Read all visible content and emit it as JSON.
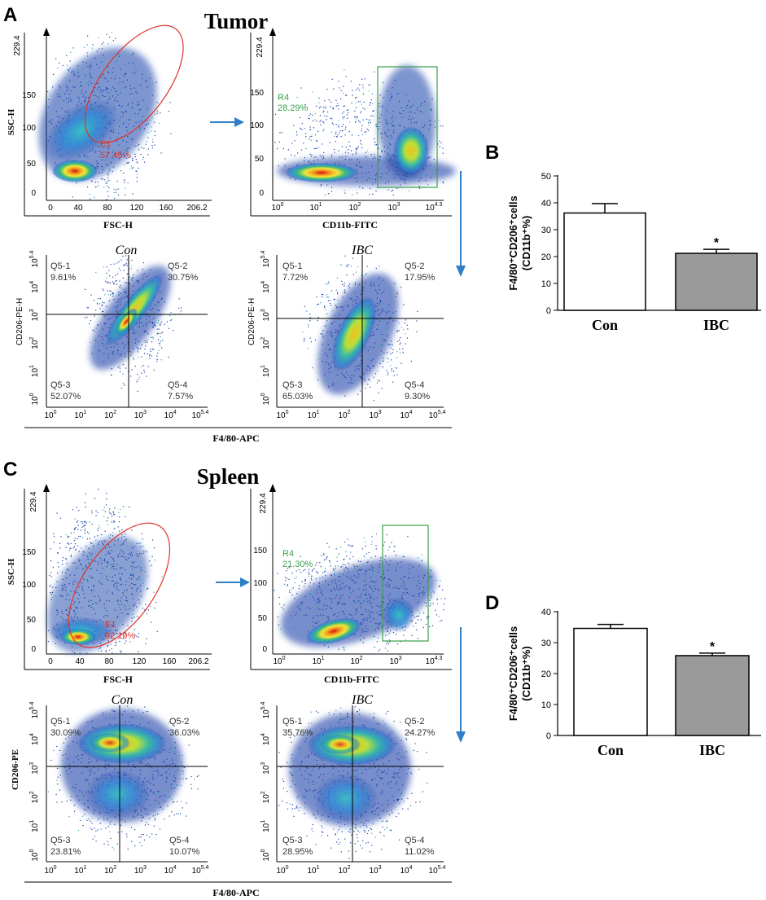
{
  "panels": {
    "A": "A",
    "B": "B",
    "C": "C",
    "D": "D"
  },
  "colors": {
    "gate_ellipse": "#e0342a",
    "gate_rect": "#3aa04a",
    "quad_text": "#333333",
    "arrow": "#2f7fc8",
    "bar_con": "#ffffff",
    "bar_ibc": "#9a9a9a"
  },
  "tumor": {
    "title": "Tumor",
    "fsc": {
      "ylabel": "SSC-H",
      "xlabel": "FSC-H",
      "yticks": [
        "0",
        "50",
        "100",
        "150",
        "229.4"
      ],
      "xticks": [
        "0",
        "40",
        "80",
        "120",
        "160",
        "206.2"
      ],
      "gate_name": "E1",
      "gate_pct": "57.45%"
    },
    "cd11b": {
      "xlabel": "CD11b-FITC",
      "yticks": [
        "0",
        "50",
        "100",
        "150",
        "229.4"
      ],
      "xticks": [
        "10",
        "10",
        "10",
        "10",
        "10"
      ],
      "xexps": [
        "0",
        "1",
        "2",
        "3",
        "4.3"
      ],
      "gate_name": "R4",
      "gate_pct": "28.29%"
    },
    "con": {
      "title": "Con",
      "ylabel": "CD206-PE-H",
      "q1": "Q5-1",
      "q1v": "9.61%",
      "q2": "Q5-2",
      "q2v": "30.75%",
      "q3": "Q5-3",
      "q3v": "52.07%",
      "q4": "Q5-4",
      "q4v": "7.57%"
    },
    "ibc": {
      "title": "IBC",
      "ylabel": "CD206-PE-H",
      "q1": "Q5-1",
      "q1v": "7.72%",
      "q2": "Q5-2",
      "q2v": "17.95%",
      "q3": "Q5-3",
      "q3v": "65.03%",
      "q4": "Q5-4",
      "q4v": "9.30%"
    },
    "xlabel": "F4/80-APC"
  },
  "spleen": {
    "title": "Spleen",
    "fsc": {
      "ylabel": "SSC-H",
      "xlabel": "FSC-H",
      "yticks": [
        "0",
        "50",
        "100",
        "150",
        "229.4"
      ],
      "xticks": [
        "0",
        "40",
        "80",
        "120",
        "160",
        "206.2"
      ],
      "gate_name": "E1",
      "gate_pct": "92.19%"
    },
    "cd11b": {
      "xlabel": "CD11b-FITC",
      "yticks": [
        "0",
        "50",
        "100",
        "150",
        "229.4"
      ],
      "xticks": [
        "10",
        "10",
        "10",
        "10",
        "10"
      ],
      "xexps": [
        "0",
        "1",
        "2",
        "3",
        "4.3"
      ],
      "gate_name": "R4",
      "gate_pct": "21.30%"
    },
    "con": {
      "title": "Con",
      "ylabel": "CD206-PE",
      "q1": "Q5-1",
      "q1v": "30.09%",
      "q2": "Q5-2",
      "q2v": "36.03%",
      "q3": "Q5-3",
      "q3v": "23.81%",
      "q4": "Q5-4",
      "q4v": "10.07%"
    },
    "ibc": {
      "title": "IBC",
      "ylabel": "",
      "q1": "Q5-1",
      "q1v": "35.76%",
      "q2": "Q5-2",
      "q2v": "24.27%",
      "q3": "Q5-3",
      "q3v": "28.95%",
      "q4": "Q5-4",
      "q4v": "11.02%"
    },
    "xlabel": "F4/80-APC"
  },
  "log_ticks": {
    "base": "10",
    "exps": [
      "0",
      "1",
      "2",
      "3",
      "4",
      "5.4"
    ]
  },
  "chart_data": [
    {
      "type": "bar",
      "panel": "B",
      "title": "",
      "ylabel_line1": "F4/80⁺CD206⁺cells",
      "ylabel_line2": "(CD11b⁺%)",
      "categories": [
        "Con",
        "IBC"
      ],
      "values": [
        36.2,
        21.2
      ],
      "errors": [
        3.5,
        1.5
      ],
      "ylim": [
        0,
        50
      ],
      "yticks": [
        "0",
        "10",
        "20",
        "30",
        "40",
        "50"
      ],
      "significance": [
        "",
        "*"
      ]
    },
    {
      "type": "bar",
      "panel": "D",
      "title": "",
      "ylabel_line1": "F4/80⁺CD206⁺cells",
      "ylabel_line2": "(CD11b⁺%)",
      "categories": [
        "Con",
        "IBC"
      ],
      "values": [
        34.6,
        25.8
      ],
      "errors": [
        1.3,
        0.8
      ],
      "ylim": [
        0,
        40
      ],
      "yticks": [
        "0",
        "10",
        "20",
        "30",
        "40"
      ],
      "significance": [
        "",
        "*"
      ]
    }
  ]
}
